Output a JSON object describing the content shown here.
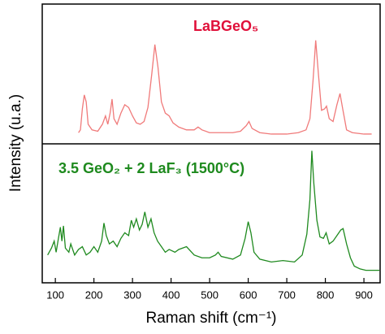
{
  "chart_data": [
    {
      "type": "line",
      "annotation": "LaBGeO₅",
      "annotation_color": "#e0103a",
      "y_label": "Intensity (u.a.)",
      "color": "#f07a7a",
      "xlim": [
        66,
        942
      ],
      "ylim": [
        0,
        100
      ],
      "x": [
        160,
        165,
        170,
        175,
        180,
        185,
        195,
        210,
        222,
        230,
        236,
        242,
        247,
        252,
        260,
        270,
        280,
        290,
        300,
        310,
        320,
        330,
        340,
        350,
        358,
        366,
        375,
        385,
        395,
        405,
        420,
        440,
        460,
        470,
        480,
        500,
        530,
        560,
        580,
        595,
        602,
        610,
        630,
        660,
        700,
        730,
        750,
        760,
        768,
        775,
        782,
        790,
        798,
        803,
        810,
        820,
        830,
        838,
        845,
        855,
        870,
        900,
        920
      ],
      "values": [
        8,
        10,
        25,
        35,
        30,
        14,
        10,
        9,
        14,
        20,
        14,
        22,
        32,
        18,
        14,
        22,
        28,
        26,
        20,
        15,
        14,
        16,
        26,
        50,
        71,
        55,
        30,
        22,
        20,
        15,
        12,
        10,
        10,
        12,
        10,
        8,
        8,
        8,
        9,
        13,
        16,
        11,
        8,
        7,
        7,
        8,
        10,
        18,
        45,
        74,
        50,
        24,
        25,
        27,
        18,
        16,
        28,
        36,
        25,
        10,
        8,
        7,
        7
      ]
    },
    {
      "type": "line",
      "annotation": "3.5 GeO₂ + 2 LaF₃ (1500°C)",
      "annotation_color": "#1e8a1e",
      "x_label": "Raman shift (cm⁻¹)",
      "color": "#1f8a1f",
      "xlim": [
        66,
        942
      ],
      "ylim": [
        0,
        100
      ],
      "xticks": [
        100,
        200,
        300,
        400,
        500,
        600,
        700,
        800,
        900
      ],
      "x": [
        80,
        90,
        97,
        102,
        108,
        113,
        117,
        121,
        126,
        135,
        140,
        150,
        160,
        170,
        180,
        190,
        200,
        210,
        220,
        226,
        232,
        240,
        250,
        260,
        270,
        280,
        290,
        297,
        303,
        310,
        318,
        325,
        332,
        340,
        348,
        356,
        365,
        375,
        385,
        395,
        410,
        420,
        440,
        460,
        480,
        500,
        515,
        522,
        530,
        560,
        580,
        592,
        600,
        607,
        615,
        630,
        660,
        690,
        720,
        740,
        752,
        760,
        765,
        770,
        778,
        786,
        795,
        802,
        810,
        820,
        830,
        840,
        846,
        855,
        865,
        875,
        890,
        905,
        920,
        940
      ],
      "values": [
        20,
        25,
        30,
        22,
        32,
        40,
        30,
        41,
        25,
        22,
        28,
        20,
        24,
        26,
        20,
        22,
        26,
        22,
        30,
        43,
        34,
        28,
        30,
        26,
        32,
        36,
        34,
        45,
        40,
        46,
        38,
        42,
        51,
        40,
        46,
        36,
        30,
        26,
        22,
        24,
        22,
        24,
        26,
        20,
        18,
        18,
        20,
        22,
        19,
        17,
        20,
        32,
        44,
        36,
        22,
        17,
        15,
        16,
        15,
        20,
        35,
        60,
        95,
        72,
        45,
        33,
        32,
        36,
        28,
        30,
        34,
        38,
        39,
        28,
        18,
        12,
        10,
        9,
        9,
        9
      ]
    }
  ]
}
